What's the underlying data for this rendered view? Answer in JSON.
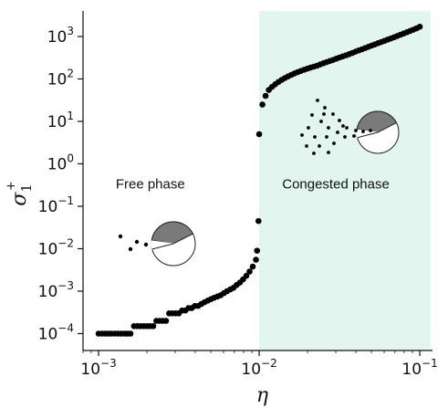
{
  "chart_data": {
    "type": "scatter",
    "title": "",
    "xlabel": "η",
    "ylabel": "σ",
    "ylabel_subscript": "1",
    "ylabel_superscript": "+",
    "x_scale": "log",
    "y_scale": "log",
    "xlim": [
      0.0008,
      0.12
    ],
    "ylim": [
      4e-05,
      4000
    ],
    "x_ticks": [
      {
        "value": 0.001,
        "base": "10",
        "exp": "−3"
      },
      {
        "value": 0.01,
        "base": "10",
        "exp": "−2"
      },
      {
        "value": 0.1,
        "base": "10",
        "exp": "−1"
      }
    ],
    "y_ticks": [
      {
        "value": 0.0001,
        "base": "10",
        "exp": "−4"
      },
      {
        "value": 0.001,
        "base": "10",
        "exp": "−3"
      },
      {
        "value": 0.01,
        "base": "10",
        "exp": "−2"
      },
      {
        "value": 0.1,
        "base": "10",
        "exp": "−1"
      },
      {
        "value": 1,
        "base": "10",
        "exp": "0"
      },
      {
        "value": 10,
        "base": "10",
        "exp": "1"
      },
      {
        "value": 100,
        "base": "10",
        "exp": "2"
      },
      {
        "value": 1000,
        "base": "10",
        "exp": "3"
      }
    ],
    "shaded_region": {
      "x_from": 0.01,
      "x_to": 0.1,
      "color": "#e3f5ef"
    },
    "annotations": [
      {
        "text": "Free phase",
        "x": 0.0021,
        "y": 0.26
      },
      {
        "text": "Congested phase",
        "x": 0.03,
        "y": 0.26
      }
    ],
    "marker_color": "#000000",
    "series": [
      {
        "points": [
          [
            0.001,
            0.0001
          ],
          [
            0.00105,
            0.0001
          ],
          [
            0.0011,
            0.0001
          ],
          [
            0.00115,
            0.0001
          ],
          [
            0.0012,
            0.0001
          ],
          [
            0.00126,
            0.0001
          ],
          [
            0.00132,
            0.0001
          ],
          [
            0.00138,
            0.0001
          ],
          [
            0.00145,
            0.0001
          ],
          [
            0.00151,
            0.0001
          ],
          [
            0.00158,
            0.0001
          ],
          [
            0.00166,
            0.00015
          ],
          [
            0.00174,
            0.00015
          ],
          [
            0.00182,
            0.00015
          ],
          [
            0.00191,
            0.00015
          ],
          [
            0.002,
            0.00015
          ],
          [
            0.00209,
            0.00015
          ],
          [
            0.00219,
            0.00015
          ],
          [
            0.00229,
            0.0002
          ],
          [
            0.0024,
            0.0002
          ],
          [
            0.00251,
            0.0002
          ],
          [
            0.00263,
            0.0002
          ],
          [
            0.00275,
            0.0003
          ],
          [
            0.00288,
            0.0003
          ],
          [
            0.00302,
            0.0003
          ],
          [
            0.00316,
            0.0003
          ],
          [
            0.00331,
            0.00035
          ],
          [
            0.00347,
            0.00035
          ],
          [
            0.00363,
            0.0004
          ],
          [
            0.0038,
            0.0004
          ],
          [
            0.00398,
            0.00045
          ],
          [
            0.00417,
            0.00045
          ],
          [
            0.00437,
            0.0005
          ],
          [
            0.00457,
            0.00055
          ],
          [
            0.00479,
            0.0006
          ],
          [
            0.00501,
            0.00065
          ],
          [
            0.00525,
            0.0007
          ],
          [
            0.0055,
            0.00075
          ],
          [
            0.00575,
            0.0008
          ],
          [
            0.00603,
            0.0009
          ],
          [
            0.00631,
            0.001
          ],
          [
            0.00661,
            0.0011
          ],
          [
            0.00692,
            0.0012
          ],
          [
            0.00724,
            0.0014
          ],
          [
            0.00759,
            0.0016
          ],
          [
            0.00794,
            0.0019
          ],
          [
            0.00832,
            0.0023
          ],
          [
            0.00871,
            0.0029
          ],
          [
            0.00912,
            0.0038
          ],
          [
            0.00955,
            0.0055
          ],
          [
            0.0097,
            0.009
          ],
          [
            0.0099,
            0.045
          ],
          [
            0.01,
            5
          ],
          [
            0.01047,
            25
          ],
          [
            0.01096,
            40
          ],
          [
            0.01148,
            55
          ],
          [
            0.01202,
            65
          ],
          [
            0.01259,
            75
          ],
          [
            0.01318,
            85
          ],
          [
            0.0138,
            95
          ],
          [
            0.01445,
            105
          ],
          [
            0.01514,
            115
          ],
          [
            0.01585,
            125
          ],
          [
            0.0166,
            135
          ],
          [
            0.01738,
            145
          ],
          [
            0.0182,
            155
          ],
          [
            0.01905,
            165
          ],
          [
            0.01995,
            175
          ],
          [
            0.02089,
            185
          ],
          [
            0.02188,
            195
          ],
          [
            0.02291,
            205
          ],
          [
            0.02399,
            220
          ],
          [
            0.02512,
            235
          ],
          [
            0.0263,
            250
          ],
          [
            0.02754,
            265
          ],
          [
            0.02884,
            280
          ],
          [
            0.0302,
            300
          ],
          [
            0.03162,
            320
          ],
          [
            0.03311,
            340
          ],
          [
            0.03467,
            360
          ],
          [
            0.03631,
            385
          ],
          [
            0.03802,
            410
          ],
          [
            0.03981,
            440
          ],
          [
            0.04169,
            470
          ],
          [
            0.04365,
            500
          ],
          [
            0.04571,
            535
          ],
          [
            0.04786,
            570
          ],
          [
            0.05012,
            610
          ],
          [
            0.05248,
            650
          ],
          [
            0.05495,
            695
          ],
          [
            0.05754,
            740
          ],
          [
            0.06026,
            790
          ],
          [
            0.0631,
            845
          ],
          [
            0.06607,
            900
          ],
          [
            0.06918,
            960
          ],
          [
            0.07244,
            1030
          ],
          [
            0.07586,
            1100
          ],
          [
            0.07943,
            1180
          ],
          [
            0.08318,
            1260
          ],
          [
            0.0871,
            1350
          ],
          [
            0.0912,
            1450
          ],
          [
            0.0955,
            1560
          ],
          [
            0.1,
            1700
          ]
        ]
      }
    ]
  }
}
